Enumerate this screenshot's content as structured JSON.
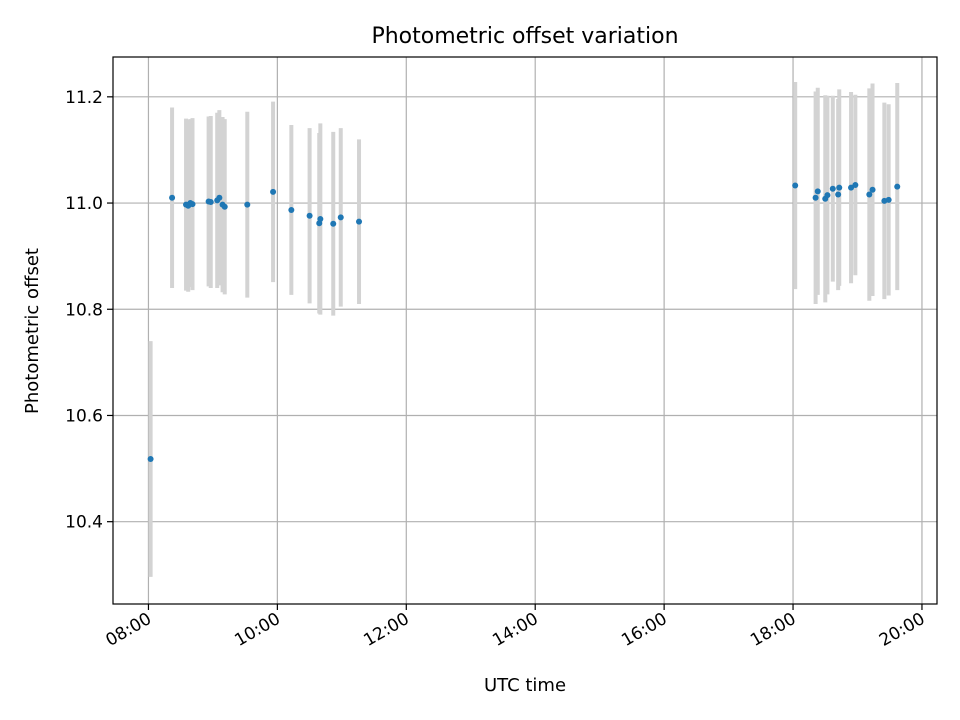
{
  "chart_data": {
    "type": "scatter",
    "title": "Photometric offset variation",
    "xlabel": "UTC time",
    "ylabel": "Photometric offset",
    "x_unit": "hours UTC",
    "xlim": [
      "07:27",
      "20:14"
    ],
    "ylim": [
      10.245,
      11.275
    ],
    "x_ticks": [
      "08:00",
      "10:00",
      "12:00",
      "14:00",
      "16:00",
      "18:00",
      "20:00"
    ],
    "y_ticks": [
      "10.4",
      "10.6",
      "10.8",
      "11.0",
      "11.2"
    ],
    "y_tick_values": [
      10.4,
      10.6,
      10.8,
      11.0,
      11.2
    ],
    "grid": true,
    "colors": {
      "points": "#1f77b4",
      "errorbars": "#d3d3d3",
      "grid": "#b0b0b0"
    },
    "points": [
      {
        "t": "08:02",
        "y": 10.518,
        "err": 0.222
      },
      {
        "t": "08:22",
        "y": 11.01,
        "err": 0.17
      },
      {
        "t": "08:35",
        "y": 10.997,
        "err": 0.162
      },
      {
        "t": "08:37",
        "y": 10.995,
        "err": 0.162
      },
      {
        "t": "08:39",
        "y": 11.0,
        "err": 0.158
      },
      {
        "t": "08:41",
        "y": 10.998,
        "err": 0.162
      },
      {
        "t": "08:56",
        "y": 11.003,
        "err": 0.16
      },
      {
        "t": "08:58",
        "y": 11.002,
        "err": 0.162
      },
      {
        "t": "09:04",
        "y": 11.005,
        "err": 0.165
      },
      {
        "t": "09:06",
        "y": 11.01,
        "err": 0.165
      },
      {
        "t": "09:09",
        "y": 10.997,
        "err": 0.165
      },
      {
        "t": "09:11",
        "y": 10.993,
        "err": 0.165
      },
      {
        "t": "09:32",
        "y": 10.997,
        "err": 0.175
      },
      {
        "t": "09:56",
        "y": 11.021,
        "err": 0.17
      },
      {
        "t": "10:13",
        "y": 10.987,
        "err": 0.16
      },
      {
        "t": "10:30",
        "y": 10.976,
        "err": 0.165
      },
      {
        "t": "10:39",
        "y": 10.962,
        "err": 0.17
      },
      {
        "t": "10:40",
        "y": 10.97,
        "err": 0.18
      },
      {
        "t": "10:52",
        "y": 10.961,
        "err": 0.173
      },
      {
        "t": "10:59",
        "y": 10.973,
        "err": 0.168
      },
      {
        "t": "11:16",
        "y": 10.965,
        "err": 0.155
      },
      {
        "t": "18:02",
        "y": 11.033,
        "err": 0.195
      },
      {
        "t": "18:21",
        "y": 11.01,
        "err": 0.2
      },
      {
        "t": "18:23",
        "y": 11.022,
        "err": 0.195
      },
      {
        "t": "18:30",
        "y": 11.008,
        "err": 0.195
      },
      {
        "t": "18:32",
        "y": 11.015,
        "err": 0.187
      },
      {
        "t": "18:37",
        "y": 11.027,
        "err": 0.175
      },
      {
        "t": "18:42",
        "y": 11.016,
        "err": 0.18
      },
      {
        "t": "18:43",
        "y": 11.029,
        "err": 0.185
      },
      {
        "t": "18:54",
        "y": 11.029,
        "err": 0.18
      },
      {
        "t": "18:58",
        "y": 11.034,
        "err": 0.17
      },
      {
        "t": "19:11",
        "y": 11.016,
        "err": 0.2
      },
      {
        "t": "19:14",
        "y": 11.025,
        "err": 0.2
      },
      {
        "t": "19:25",
        "y": 11.004,
        "err": 0.185
      },
      {
        "t": "19:29",
        "y": 11.006,
        "err": 0.18
      },
      {
        "t": "19:37",
        "y": 11.031,
        "err": 0.195
      }
    ]
  }
}
